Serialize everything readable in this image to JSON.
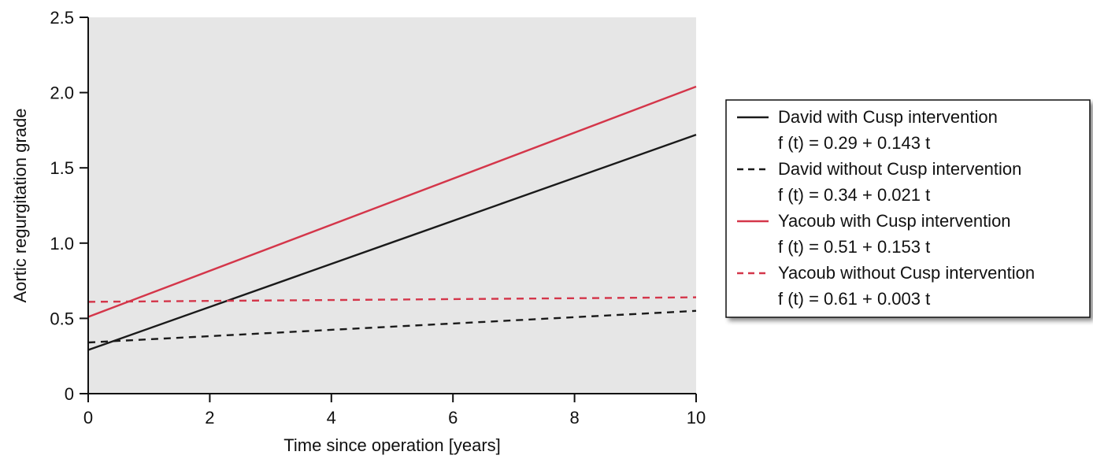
{
  "chart_data": {
    "type": "line",
    "title": "",
    "xlabel": "Time since operation [years]",
    "ylabel": "Aortic regurgitation grade",
    "xlim": [
      0,
      10
    ],
    "ylim": [
      0,
      2.5
    ],
    "xticks": [
      0,
      2,
      4,
      6,
      8,
      10
    ],
    "xtick_labels": [
      "0",
      "2",
      "4",
      "6",
      "8",
      "10"
    ],
    "yticks": [
      0,
      0.5,
      1.0,
      1.5,
      2.0,
      2.5
    ],
    "ytick_labels": [
      "0",
      "0.5",
      "1.0",
      "1.5",
      "2.0",
      "2.5"
    ],
    "grid": false,
    "legend_position": "right",
    "plot_background": "#e6e6e6",
    "series": [
      {
        "name": "David with Cusp intervention",
        "equation": "f (t) = 0.29 + 0.143 t",
        "x": [
          0,
          10
        ],
        "y": [
          0.29,
          1.72
        ],
        "color": "#1a1a1a",
        "dashed": false
      },
      {
        "name": "David without Cusp intervention",
        "equation": "f (t) = 0.34 + 0.021 t",
        "x": [
          0,
          10
        ],
        "y": [
          0.34,
          0.55
        ],
        "color": "#1a1a1a",
        "dashed": true
      },
      {
        "name": "Yacoub with Cusp intervention",
        "equation": "f (t) = 0.51 + 0.153 t",
        "x": [
          0,
          10
        ],
        "y": [
          0.51,
          2.04
        ],
        "color": "#d4364a",
        "dashed": false
      },
      {
        "name": "Yacoub without Cusp intervention",
        "equation": "f (t) = 0.61 + 0.003 t",
        "x": [
          0,
          10
        ],
        "y": [
          0.61,
          0.64
        ],
        "color": "#d4364a",
        "dashed": true
      }
    ]
  }
}
